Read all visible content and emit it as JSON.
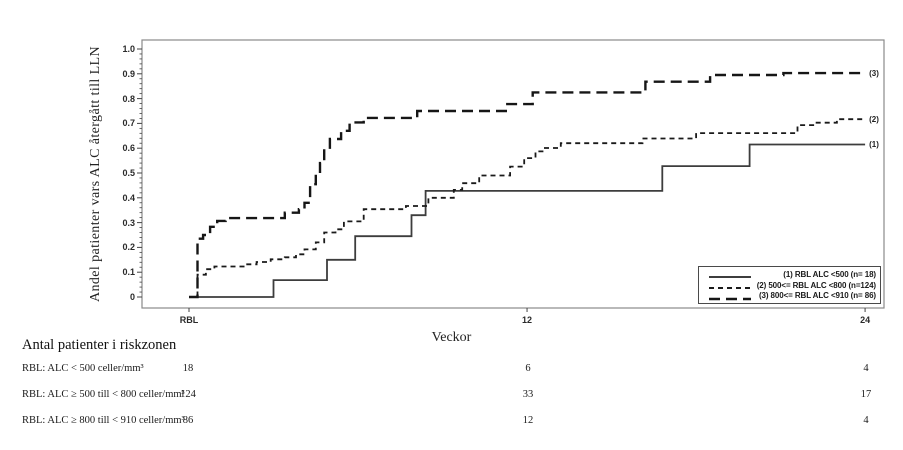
{
  "chart_data": {
    "type": "line",
    "subtype": "kaplan-meier-step",
    "title": "",
    "xlabel": "Veckor",
    "ylabel": "Andel patienter vars ALC återgått till LLN",
    "xlim": [
      -1.65,
      24.65
    ],
    "ylim": [
      -0.045,
      1.035
    ],
    "grid": false,
    "legend_position": "inside-bottom-right",
    "yticks": {
      "major_values": [
        0,
        0.1,
        0.2,
        0.3,
        0.4,
        0.5,
        0.6,
        0.7,
        0.8,
        0.9,
        1.0
      ],
      "major_labels": [
        "0",
        "0.1",
        "0.2",
        "0.3",
        "0.4",
        "0.5",
        "0.6",
        "0.7",
        "0.8",
        "0.9",
        "1.0"
      ],
      "minor_step": 0.02
    },
    "xticks": [
      {
        "value": 0,
        "label": "RBL"
      },
      {
        "value": 12,
        "label": "12"
      },
      {
        "value": 24,
        "label": "24"
      }
    ],
    "series": [
      {
        "name": "(1) RBL ALC <500 (n= 18)",
        "end_label": "(1)",
        "line": "solid",
        "color": "#3d3d3d",
        "width": 1.8,
        "points": [
          [
            0,
            0
          ],
          [
            3.0,
            0.068
          ],
          [
            4.9,
            0.15
          ],
          [
            5.9,
            0.245
          ],
          [
            7.9,
            0.33
          ],
          [
            8.4,
            0.428
          ],
          [
            16.8,
            0.528
          ],
          [
            19.9,
            0.615
          ],
          [
            24,
            0.615
          ]
        ]
      },
      {
        "name": "(2) 500<= RBL ALC <800 (n=124)",
        "end_label": "(2)",
        "line": "dash-short",
        "color": "#1a1a1a",
        "width": 1.8,
        "points": [
          [
            0,
            0
          ],
          [
            0.3,
            0.09
          ],
          [
            0.6,
            0.112
          ],
          [
            0.9,
            0.123
          ],
          [
            2.0,
            0.132
          ],
          [
            2.4,
            0.141
          ],
          [
            2.9,
            0.152
          ],
          [
            3.4,
            0.16
          ],
          [
            3.8,
            0.172
          ],
          [
            4.1,
            0.192
          ],
          [
            4.5,
            0.22
          ],
          [
            4.8,
            0.26
          ],
          [
            5.2,
            0.273
          ],
          [
            5.5,
            0.305
          ],
          [
            6.2,
            0.354
          ],
          [
            7.7,
            0.367
          ],
          [
            8.5,
            0.4
          ],
          [
            9.4,
            0.432
          ],
          [
            9.7,
            0.459
          ],
          [
            10.3,
            0.49
          ],
          [
            11.4,
            0.526
          ],
          [
            11.9,
            0.56
          ],
          [
            12.3,
            0.587
          ],
          [
            12.6,
            0.601
          ],
          [
            13.2,
            0.62
          ],
          [
            16.1,
            0.639
          ],
          [
            18.0,
            0.661
          ],
          [
            21.6,
            0.693
          ],
          [
            22.2,
            0.703
          ],
          [
            23.0,
            0.717
          ],
          [
            24,
            0.717
          ]
        ]
      },
      {
        "name": "(3) 800<= RBL ALC <910 (n= 86)",
        "end_label": "(3)",
        "line": "dash-long",
        "color": "#161616",
        "width": 2.4,
        "points": [
          [
            0,
            0
          ],
          [
            0.3,
            0.235
          ],
          [
            0.5,
            0.25
          ],
          [
            0.75,
            0.283
          ],
          [
            1.0,
            0.307
          ],
          [
            1.3,
            0.318
          ],
          [
            3.4,
            0.34
          ],
          [
            3.9,
            0.354
          ],
          [
            4.1,
            0.38
          ],
          [
            4.3,
            0.455
          ],
          [
            4.5,
            0.5
          ],
          [
            4.65,
            0.54
          ],
          [
            4.8,
            0.596
          ],
          [
            5.0,
            0.637
          ],
          [
            5.4,
            0.67
          ],
          [
            5.7,
            0.704
          ],
          [
            6.2,
            0.722
          ],
          [
            8.1,
            0.75
          ],
          [
            11.3,
            0.778
          ],
          [
            12.2,
            0.825
          ],
          [
            16.2,
            0.868
          ],
          [
            18.5,
            0.895
          ],
          [
            21.1,
            0.903
          ],
          [
            24,
            0.903
          ]
        ]
      }
    ]
  },
  "risk_table": {
    "title": "Antal patienter i riskzonen",
    "columns": [
      {
        "week": 0,
        "x_label": "RBL"
      },
      {
        "week": 12,
        "x_label": "12"
      },
      {
        "week": 24,
        "x_label": "24"
      }
    ],
    "rows": [
      {
        "label": "RBL: ALC < 500 celler/mm³",
        "counts": [
          "18",
          "6",
          "4"
        ]
      },
      {
        "label": "RBL: ALC ≥ 500 till < 800 celler/mm³",
        "counts": [
          "124",
          "33",
          "17"
        ]
      },
      {
        "label": "RBL: ALC ≥ 800 till < 910 celler/mm³",
        "counts": [
          "86",
          "12",
          "4"
        ]
      }
    ]
  },
  "colors": {
    "background": "#ffffff",
    "plot_border": "#8a8a8a",
    "tick": "#444444",
    "text": "#1f1f1f",
    "legend_border": "#4a4a4a"
  }
}
